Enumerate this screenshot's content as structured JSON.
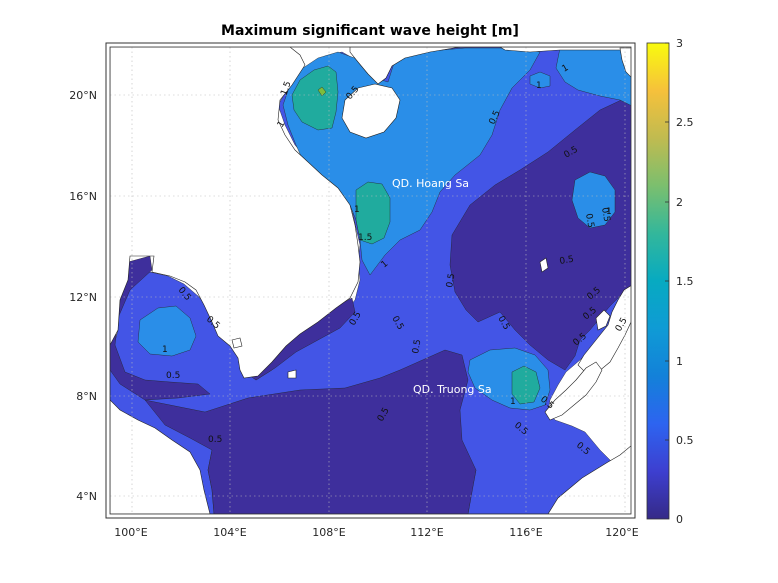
{
  "title": "Maximum significant wave height [m]",
  "x_ticks": [
    "100°E",
    "104°E",
    "108°E",
    "112°E",
    "116°E",
    "120°E"
  ],
  "y_ticks": [
    "20°N",
    "16°N",
    "12°N",
    "8°N",
    "4°N"
  ],
  "colorbar": {
    "ticks": [
      "3",
      "2.5",
      "2",
      "1.5",
      "1",
      "0.5",
      "0"
    ],
    "colormap": "parula",
    "range": [
      0,
      3
    ]
  },
  "region_labels": {
    "paracels": "QD. Hoang Sa",
    "spratlys": "QD. Truong Sa"
  },
  "contour_labels": [
    "1.5",
    "0.5",
    "1",
    "1",
    "1",
    "0.5",
    "0.5",
    "1",
    "1.5",
    "1",
    "0.5",
    "0.5",
    "0.5",
    "0.5",
    "0.5",
    "0.5",
    "0.5",
    "0.5",
    "0.5",
    "0.5",
    "0.5",
    "0.5",
    "1",
    "0.5",
    "0.5",
    "1",
    "0.5",
    "0.5",
    "0.5",
    "0.5",
    "1",
    "0.5",
    "0.5"
  ],
  "chart_data": {
    "type": "heatmap",
    "title": "Maximum significant wave height [m]",
    "x_range": [
      99.2,
      120.4
    ],
    "y_range": [
      3.0,
      22.0
    ],
    "x_ticks": [
      100,
      104,
      108,
      112,
      116,
      120
    ],
    "y_ticks": [
      20,
      16,
      12,
      8,
      4
    ],
    "colorbar_range": [
      0,
      3
    ],
    "levels": [
      0,
      0.5,
      1,
      1.5,
      2,
      2.5,
      3
    ],
    "grid": true
  },
  "colors": {
    "land": "#ffffff",
    "level_0": "#3e2f9c",
    "level_05": "#4355e6",
    "level_1": "#2a8ee8",
    "level_15": "#20ab9e",
    "level_2": "#7dbd3c"
  }
}
